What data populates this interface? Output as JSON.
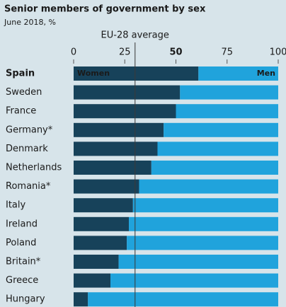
{
  "chart_data": {
    "type": "stacked-barh",
    "title": "Senior members of government by sex",
    "subtitle": "June 2018, %",
    "categories": [
      "Spain",
      "Sweden",
      "France",
      "Germany*",
      "Denmark",
      "Netherlands",
      "Romania*",
      "Italy",
      "Ireland",
      "Poland",
      "Britain*",
      "Greece",
      "Hungary"
    ],
    "series": [
      {
        "name": "Women",
        "color": "#17425a",
        "values": [
          61,
          52,
          50,
          44,
          41,
          38,
          32,
          29,
          27,
          26,
          22,
          18,
          7
        ]
      },
      {
        "name": "Men",
        "color": "#20a3dc",
        "values": [
          39,
          48,
          50,
          56,
          59,
          62,
          68,
          71,
          73,
          74,
          78,
          82,
          93
        ]
      }
    ],
    "xlim": [
      0,
      100
    ],
    "xticks": [
      0,
      25,
      50,
      75,
      100
    ],
    "highlight_ticks": [
      50
    ],
    "highlight_color": "#d0452b",
    "reference": {
      "label": "EU-28 average",
      "value": 30,
      "color": "#a8354a"
    }
  }
}
